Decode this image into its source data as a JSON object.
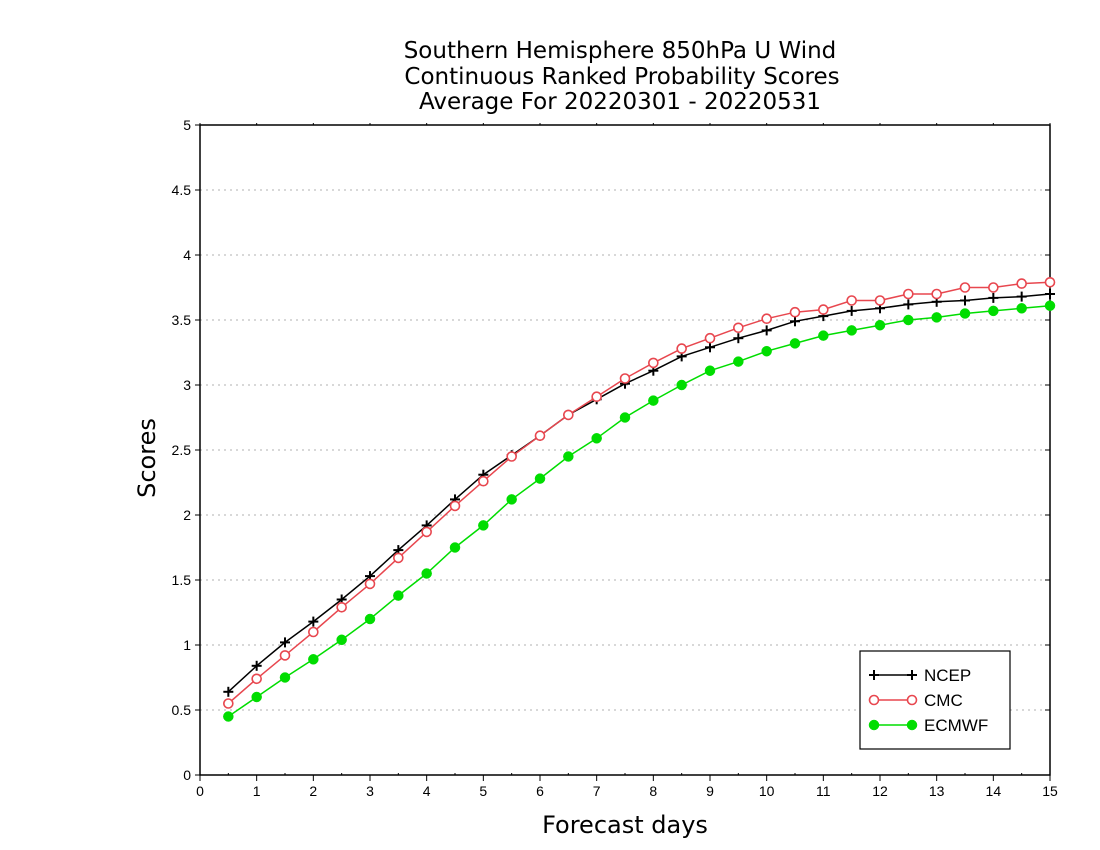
{
  "chart_data": {
    "type": "line",
    "title_lines": [
      "Southern Hemisphere 850hPa U Wind",
      "Continuous Ranked Probability Scores",
      "Average For 20220301 - 20220531"
    ],
    "xlabel": "Forecast days",
    "ylabel": "Scores",
    "xlim": [
      0,
      15
    ],
    "ylim": [
      0,
      5
    ],
    "x_ticks": [
      "0",
      "1",
      "2",
      "3",
      "4",
      "5",
      "6",
      "7",
      "8",
      "9",
      "10",
      "11",
      "12",
      "13",
      "14",
      "15"
    ],
    "y_ticks": [
      "0",
      "0.5",
      "1",
      "1.5",
      "2",
      "2.5",
      "3",
      "3.5",
      "4",
      "4.5",
      "5"
    ],
    "grid": "horizontal dotted",
    "legend_position": "bottom-right",
    "x": [
      0.5,
      1,
      1.5,
      2,
      2.5,
      3,
      3.5,
      4,
      4.5,
      5,
      5.5,
      6,
      6.5,
      7,
      7.5,
      8,
      8.5,
      9,
      9.5,
      10,
      10.5,
      11,
      11.5,
      12,
      12.5,
      13,
      13.5,
      14,
      14.5,
      15
    ],
    "series": [
      {
        "name": "NCEP",
        "color": "#000000",
        "marker": "plus",
        "values": [
          0.64,
          0.84,
          1.02,
          1.18,
          1.35,
          1.53,
          1.73,
          1.92,
          2.12,
          2.31,
          2.46,
          2.61,
          2.77,
          2.89,
          3.01,
          3.11,
          3.22,
          3.29,
          3.36,
          3.42,
          3.49,
          3.53,
          3.57,
          3.59,
          3.62,
          3.64,
          3.65,
          3.67,
          3.68,
          3.7
        ]
      },
      {
        "name": "CMC",
        "color": "#e8474f",
        "marker": "open-circle",
        "values": [
          0.55,
          0.74,
          0.92,
          1.1,
          1.29,
          1.47,
          1.67,
          1.87,
          2.07,
          2.26,
          2.45,
          2.61,
          2.77,
          2.91,
          3.05,
          3.17,
          3.28,
          3.36,
          3.44,
          3.51,
          3.56,
          3.58,
          3.65,
          3.65,
          3.7,
          3.7,
          3.75,
          3.75,
          3.78,
          3.79
        ]
      },
      {
        "name": "ECMWF",
        "color": "#00dd00",
        "marker": "filled-circle",
        "values": [
          0.45,
          0.6,
          0.75,
          0.89,
          1.04,
          1.2,
          1.38,
          1.55,
          1.75,
          1.92,
          2.12,
          2.28,
          2.45,
          2.59,
          2.75,
          2.88,
          3.0,
          3.11,
          3.18,
          3.26,
          3.32,
          3.38,
          3.42,
          3.46,
          3.5,
          3.52,
          3.55,
          3.57,
          3.59,
          3.61
        ]
      }
    ]
  }
}
